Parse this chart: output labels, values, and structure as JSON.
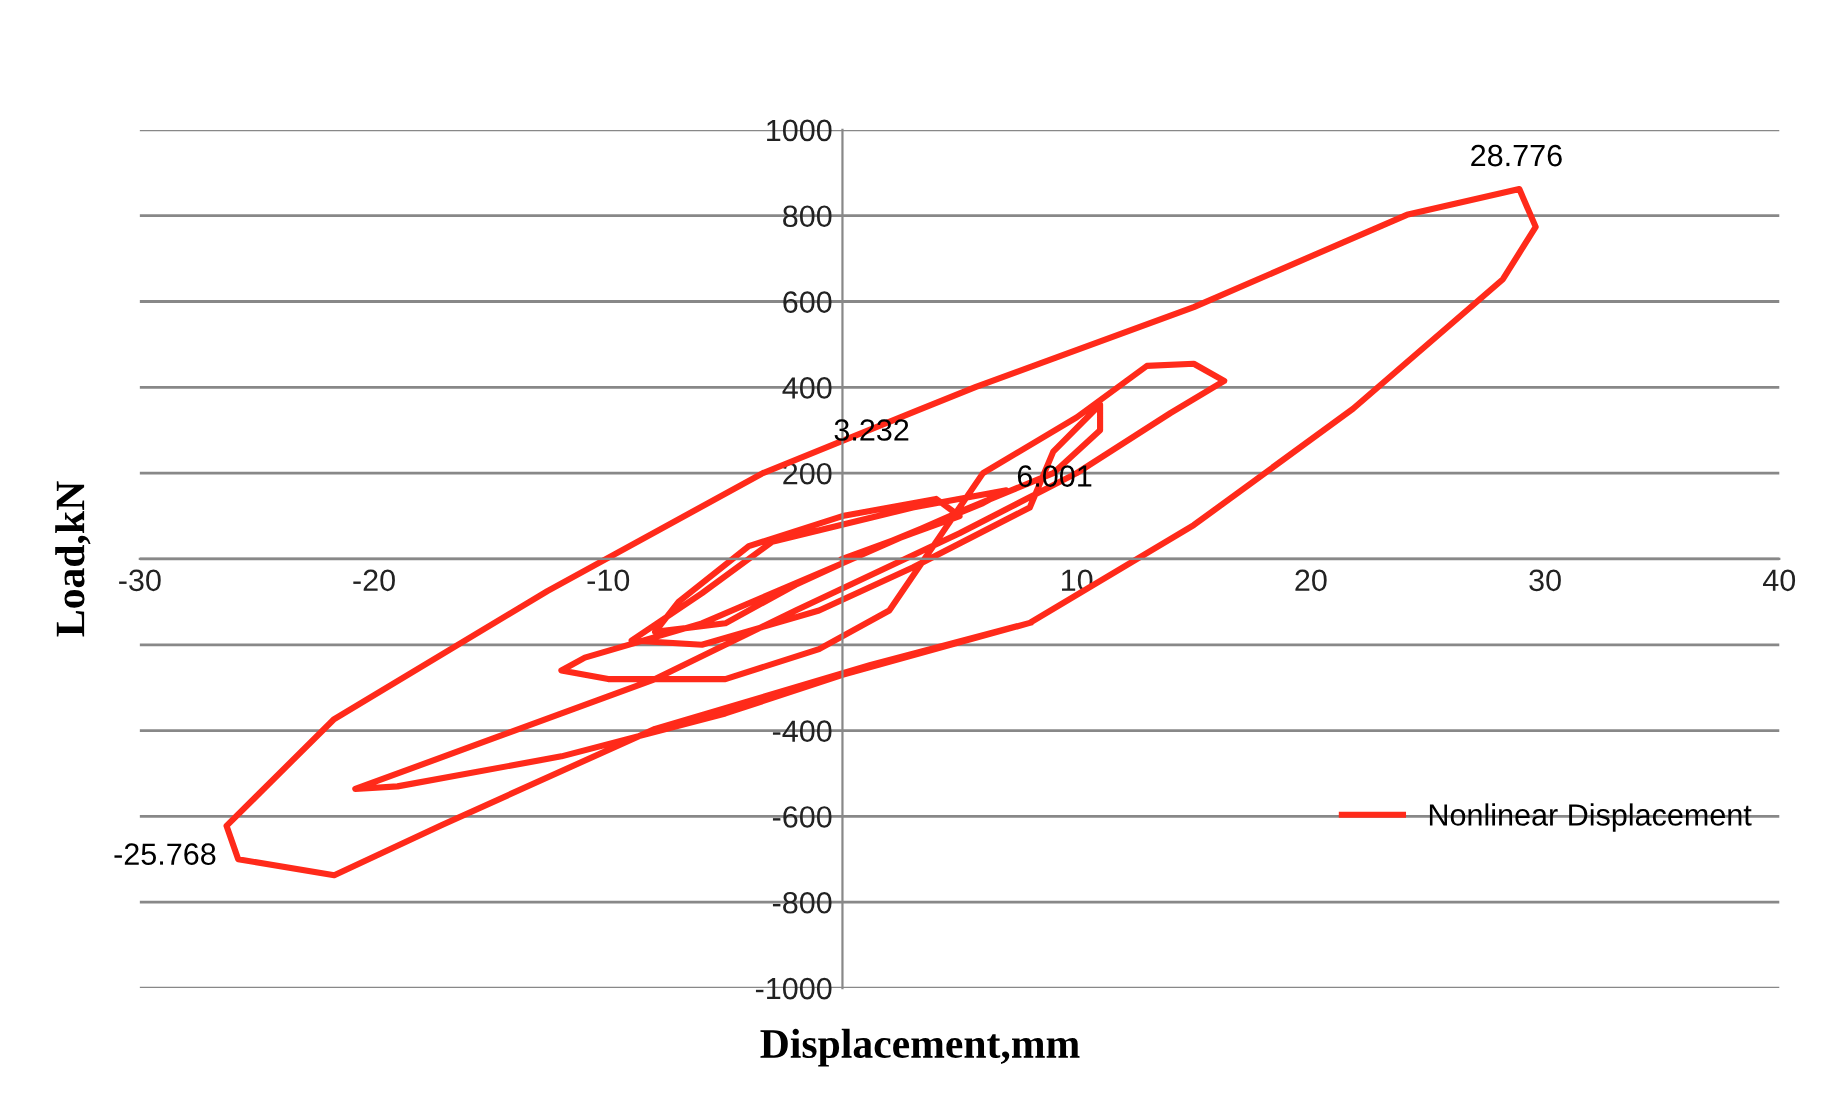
{
  "chart_data": {
    "type": "line",
    "xlabel": "Displacement,mm",
    "ylabel": "Load,kN",
    "xlim": [
      -30,
      40
    ],
    "xticks": [
      -30,
      -20,
      -10,
      {
        "value": 0,
        "label": null
      },
      10,
      20,
      30,
      40
    ],
    "ylim": [
      -1000,
      1000
    ],
    "yticks": [
      -1000,
      -800,
      -600,
      -400,
      {
        "value": -200,
        "label": null
      },
      {
        "value": 0,
        "label": null
      },
      200,
      400,
      600,
      800,
      1000
    ],
    "grid": "y",
    "legend": "lower right",
    "marker": "none",
    "line_style": "solid",
    "annotations": [
      {
        "text": "28.776",
        "x": 28.776,
        "y": 862
      },
      {
        "text": "3.232",
        "x": 3.232,
        "y": 347
      },
      {
        "text": "6.001",
        "x": 6.001,
        "y": 200
      },
      {
        "text": "-25.768",
        "x": -25.768,
        "y": -622
      }
    ],
    "series": [
      {
        "name": "Nonlinear Displacement",
        "color": "#ff2a1a",
        "x": [
          0,
          3,
          5,
          4,
          0,
          -4,
          -7,
          -8,
          -5,
          -2,
          2,
          6,
          7,
          3,
          -3,
          -6,
          -9,
          -6,
          -1,
          3,
          8,
          9,
          11,
          11,
          9,
          5,
          0,
          -6,
          -11,
          -12,
          -10,
          -5,
          -1,
          2,
          6.001,
          10,
          13,
          15,
          16.3,
          14,
          10,
          5,
          -2,
          -8,
          -15,
          -20.8,
          -19,
          -12,
          -5,
          0,
          8,
          15,
          21.8,
          28.2,
          29.6,
          28.9,
          24.1,
          15,
          5.7,
          3.232,
          -3.4,
          -12.6,
          -21.7,
          -26.3,
          -25.8,
          -21.7,
          -17.1,
          -8,
          1.2,
          8
        ],
        "values": [
          0,
          60,
          100,
          140,
          100,
          30,
          -100,
          -170,
          -150,
          -60,
          40,
          130,
          160,
          120,
          40,
          -80,
          -190,
          -200,
          -120,
          -20,
          120,
          250,
          360,
          300,
          200,
          110,
          -10,
          -150,
          -230,
          -260,
          -280,
          -280,
          -210,
          -120,
          200,
          330,
          450,
          455,
          415,
          340,
          200,
          60,
          -120,
          -280,
          -420,
          -536,
          -530,
          -460,
          -360,
          -270,
          -149,
          79,
          350,
          652,
          774,
          862,
          802,
          587,
          401,
          347,
          200,
          -75,
          -373,
          -622,
          -700,
          -737,
          -620,
          -396,
          -247,
          -149
        ]
      }
    ]
  }
}
